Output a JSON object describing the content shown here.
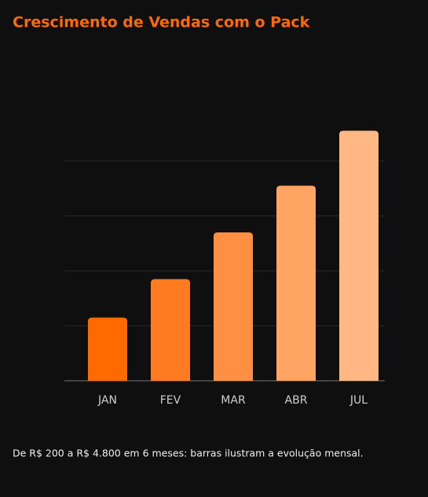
{
  "chart_data": {
    "type": "bar",
    "title": "Crescimento de Vendas com o Pack",
    "categories": [
      "JAN",
      "FEV",
      "MAR",
      "ABR",
      "JUL"
    ],
    "values": [
      1.15,
      1.85,
      2.7,
      3.55,
      4.55
    ],
    "colors": [
      "#ff6a00",
      "#ff7b22",
      "#ff8f42",
      "#ffa462",
      "#ffb883"
    ],
    "ylim": [
      0,
      4.6
    ],
    "yticks": [
      0,
      1,
      2,
      3,
      4
    ],
    "grid": true,
    "caption": "De R$ 200 a R$ 4.800 em 6 meses: barras ilustram a evolução mensal."
  }
}
